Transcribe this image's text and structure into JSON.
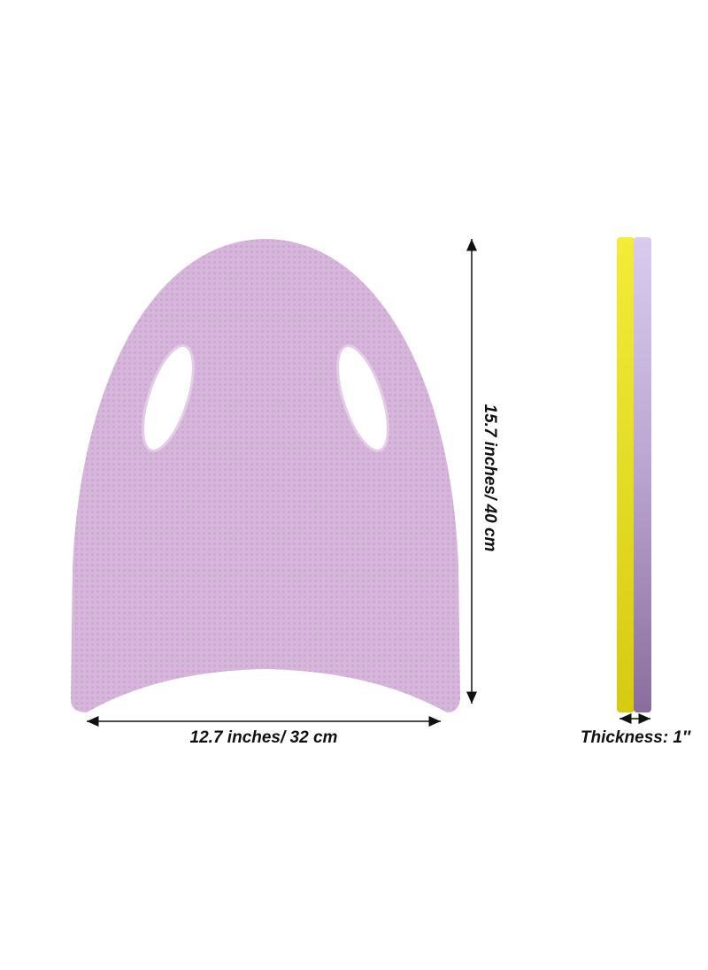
{
  "labels": {
    "height": "15.7 inches/ 40 cm",
    "width": "12.7 inches/ 32 cm",
    "thickness": "Thickness: 1″"
  }
}
